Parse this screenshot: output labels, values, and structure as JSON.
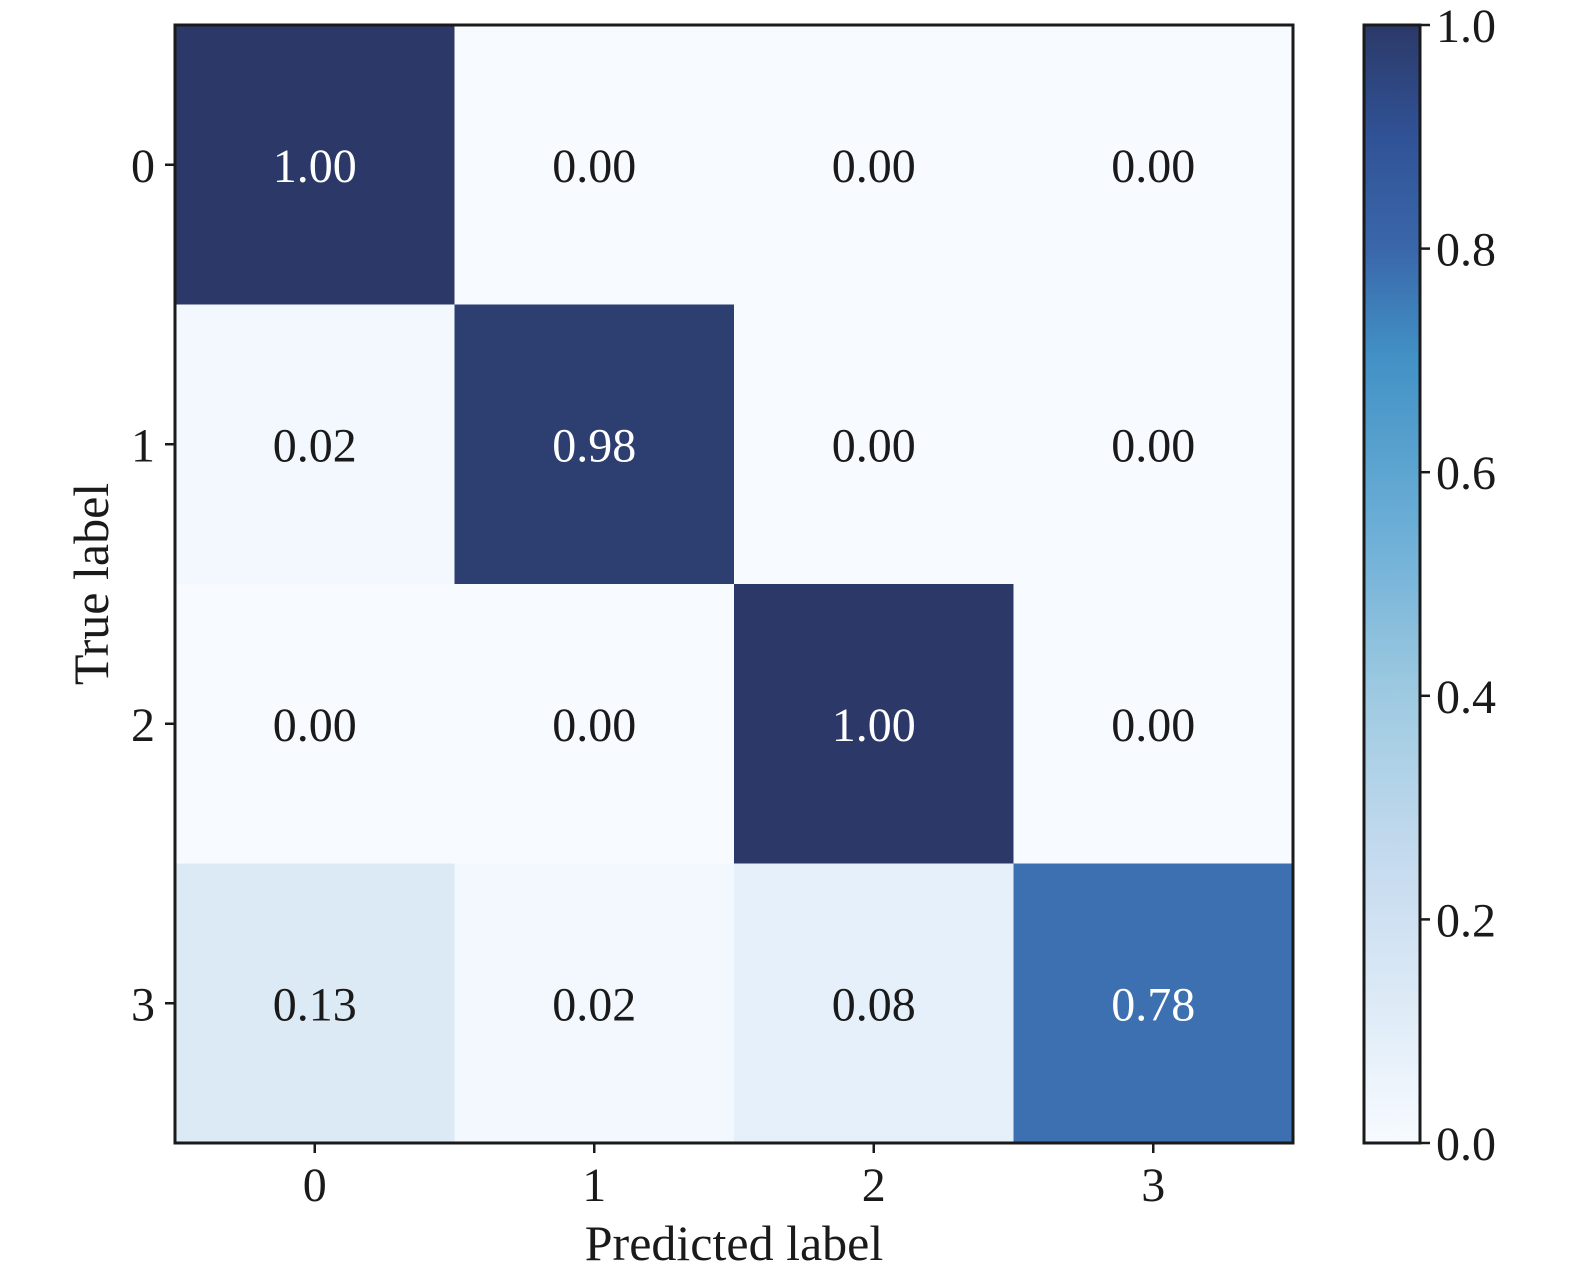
{
  "chart_data": {
    "type": "heatmap",
    "title": "",
    "xlabel": "Predicted label",
    "ylabel": "True label",
    "x_categories": [
      "0",
      "1",
      "2",
      "3"
    ],
    "y_categories": [
      "0",
      "1",
      "2",
      "3"
    ],
    "values": [
      [
        1.0,
        0.0,
        0.0,
        0.0
      ],
      [
        0.02,
        0.98,
        0.0,
        0.0
      ],
      [
        0.0,
        0.0,
        1.0,
        0.0
      ],
      [
        0.13,
        0.02,
        0.08,
        0.78
      ]
    ],
    "cell_labels": [
      [
        "1.00",
        "0.00",
        "0.00",
        "0.00"
      ],
      [
        "0.02",
        "0.98",
        "0.00",
        "0.00"
      ],
      [
        "0.00",
        "0.00",
        "1.00",
        "0.00"
      ],
      [
        "0.13",
        "0.02",
        "0.08",
        "0.78"
      ]
    ],
    "colormap": "Blues",
    "colorbar": {
      "range": [
        0.0,
        1.0
      ],
      "ticks": [
        "0.0",
        "0.2",
        "0.4",
        "0.6",
        "0.8",
        "1.0"
      ]
    },
    "colors": {
      "low": "#f7fbff",
      "high": "#2c3968",
      "text_dark": "#1a1a1a",
      "text_light": "#ffffff"
    }
  }
}
